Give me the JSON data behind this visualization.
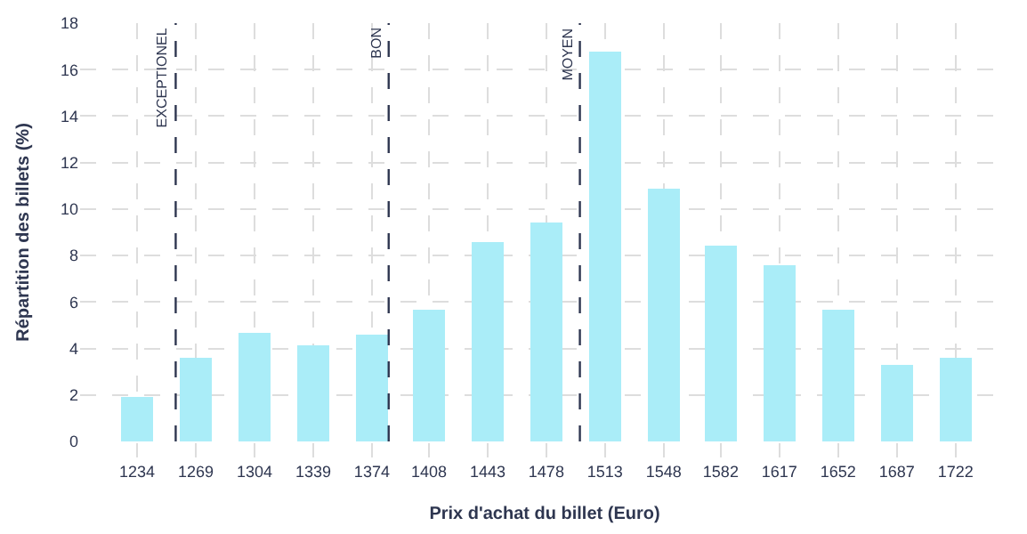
{
  "chart_data": {
    "type": "bar",
    "xlabel": "Prix d'achat du billet (Euro)",
    "ylabel": "Répartition des billets (%)",
    "x": [
      1234,
      1269,
      1304,
      1339,
      1374,
      1408,
      1443,
      1478,
      1513,
      1548,
      1582,
      1617,
      1652,
      1687,
      1722
    ],
    "values": [
      1.9,
      3.6,
      4.7,
      4.1,
      4.6,
      5.7,
      8.6,
      9.4,
      16.8,
      10.9,
      8.4,
      7.6,
      5.7,
      3.3,
      3.6
    ],
    "color": "#aaedf8",
    "xlim": [
      1200,
      1754
    ],
    "xticks": [
      1234,
      1269,
      1304,
      1339,
      1374,
      1408,
      1443,
      1478,
      1513,
      1548,
      1582,
      1617,
      1652,
      1687,
      1722
    ],
    "ylim": [
      0,
      18
    ],
    "yticks": [
      0,
      2,
      4,
      6,
      8,
      10,
      12,
      14,
      16,
      18
    ],
    "grid": true,
    "ref_lines": [
      {
        "axis": "x",
        "value": 1257,
        "label": "EXCEPTIONEL",
        "color": "#2e3650",
        "line_style": "dashed"
      },
      {
        "axis": "x",
        "value": 1384,
        "label": "BON",
        "color": "#2e3650",
        "line_style": "dashed"
      },
      {
        "axis": "x",
        "value": 1498,
        "label": "MOYEN",
        "color": "#2e3650",
        "line_style": "dashed"
      }
    ]
  }
}
